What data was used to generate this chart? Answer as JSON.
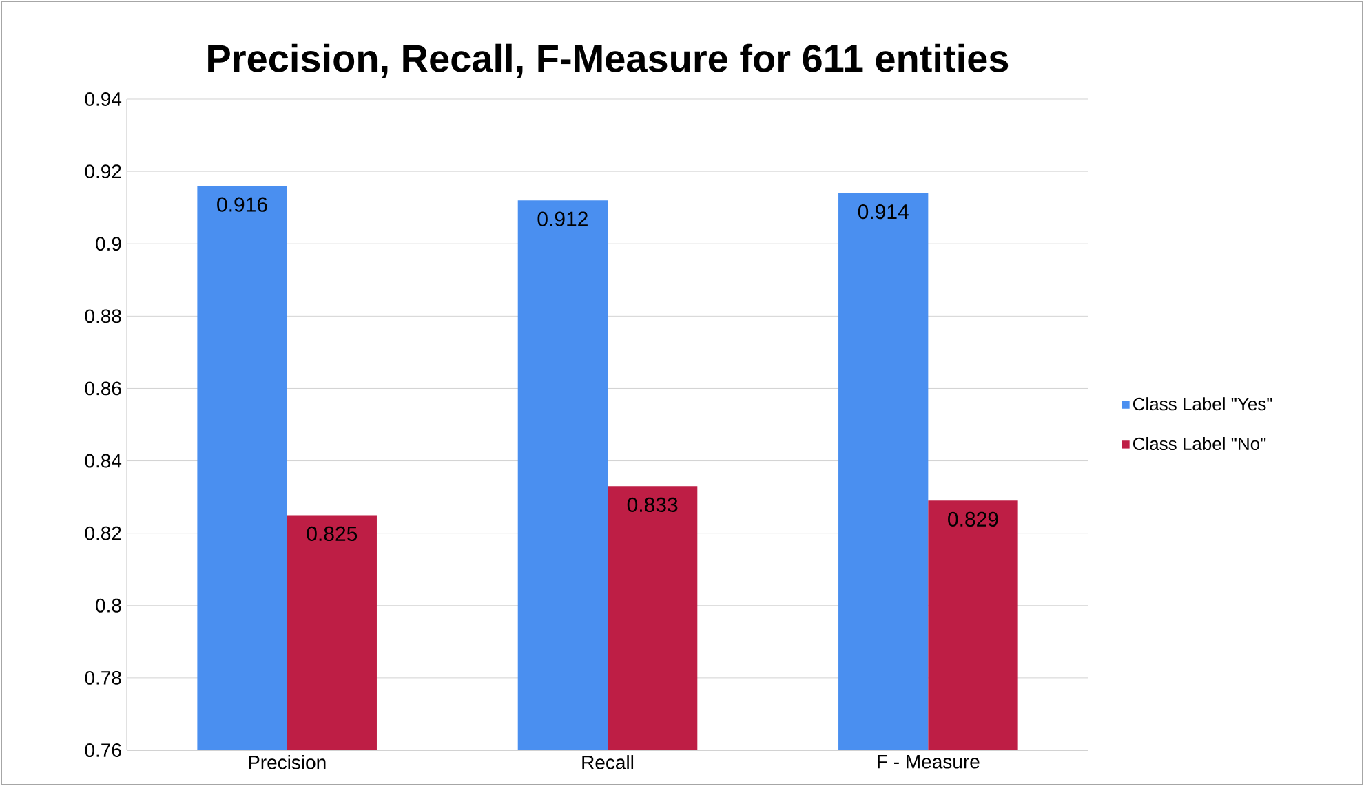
{
  "chart_data": {
    "type": "bar",
    "title": "Precision, Recall, F-Measure for 611 entities",
    "categories": [
      "Precision",
      "Recall",
      "F - Measure"
    ],
    "series": [
      {
        "name": "Class Label \"Yes\"",
        "color": "#4a8ff0",
        "values": [
          0.916,
          0.912,
          0.914
        ]
      },
      {
        "name": "Class Label \"No\"",
        "color": "#be1e45",
        "values": [
          0.825,
          0.833,
          0.829
        ]
      }
    ],
    "ylim": [
      0.76,
      0.94
    ],
    "yticks": [
      0.76,
      0.78,
      0.8,
      0.82,
      0.84,
      0.86,
      0.88,
      0.9,
      0.92,
      0.94
    ],
    "grid": "y",
    "legend": "right",
    "data_labels": true
  }
}
